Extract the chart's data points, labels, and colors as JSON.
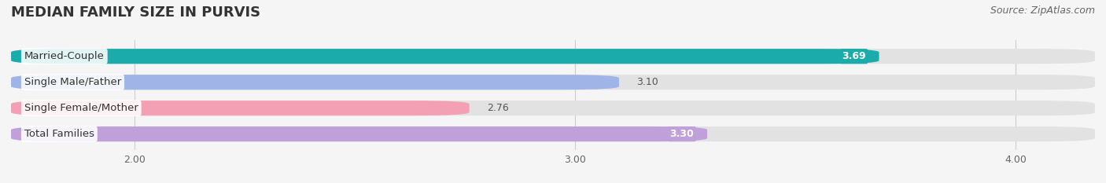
{
  "title": "MEDIAN FAMILY SIZE IN PURVIS",
  "source": "Source: ZipAtlas.com",
  "categories": [
    "Married-Couple",
    "Single Male/Father",
    "Single Female/Mother",
    "Total Families"
  ],
  "values": [
    3.69,
    3.1,
    2.76,
    3.3
  ],
  "bar_colors": [
    "#1aabaa",
    "#a0b4e8",
    "#f4a0b4",
    "#c0a0d8"
  ],
  "value_text_colors": [
    "white",
    "#555555",
    "#555555",
    "white"
  ],
  "value_inside": [
    true,
    false,
    false,
    true
  ],
  "xlim_min": 1.72,
  "xlim_max": 4.18,
  "x_ticks": [
    2.0,
    3.0,
    4.0
  ],
  "x_tick_labels": [
    "2.00",
    "3.00",
    "4.00"
  ],
  "bar_height": 0.58,
  "bar_gap": 0.12,
  "label_fontsize": 9.5,
  "value_fontsize": 9.0,
  "title_fontsize": 13,
  "source_fontsize": 9,
  "background_color": "#f5f5f5",
  "bg_bar_color": "#e2e2e2"
}
